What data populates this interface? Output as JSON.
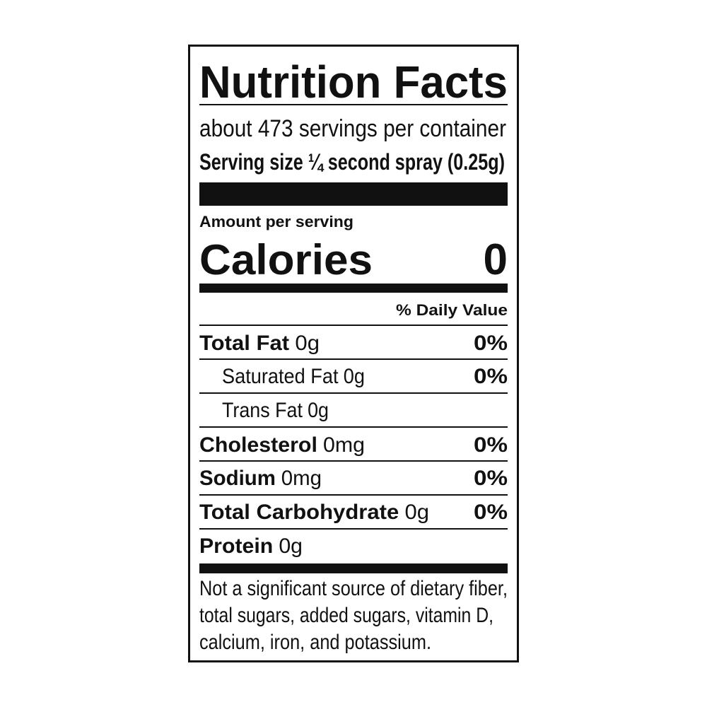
{
  "header": {
    "title": "Nutrition Facts",
    "servings": "about 473 servings per container",
    "serving_size": "Serving size ¼ second spray (0.25g)"
  },
  "calories": {
    "intro": "Amount per serving",
    "label": "Calories",
    "value": "0"
  },
  "daily_value_header": "% Daily Value",
  "rows": [
    {
      "name": "Total Fat",
      "amount": "0g",
      "dv": "0%"
    },
    {
      "name": "Saturated Fat",
      "amount": "0g",
      "dv": "0%"
    },
    {
      "name": "Trans Fat",
      "amount": "0g"
    },
    {
      "name": "Cholesterol",
      "amount": "0mg",
      "dv": "0%"
    },
    {
      "name": "Sodium",
      "amount": "0mg",
      "dv": "0%"
    },
    {
      "name": "Total Carbohydrate",
      "amount": "0g",
      "dv": "0%"
    },
    {
      "name": "Protein",
      "amount": "0g"
    }
  ],
  "footnote": [
    "Not a significant source of dietary fiber,",
    "total sugars, added sugars, vitamin D,",
    "calcium, iron, and potassium."
  ]
}
